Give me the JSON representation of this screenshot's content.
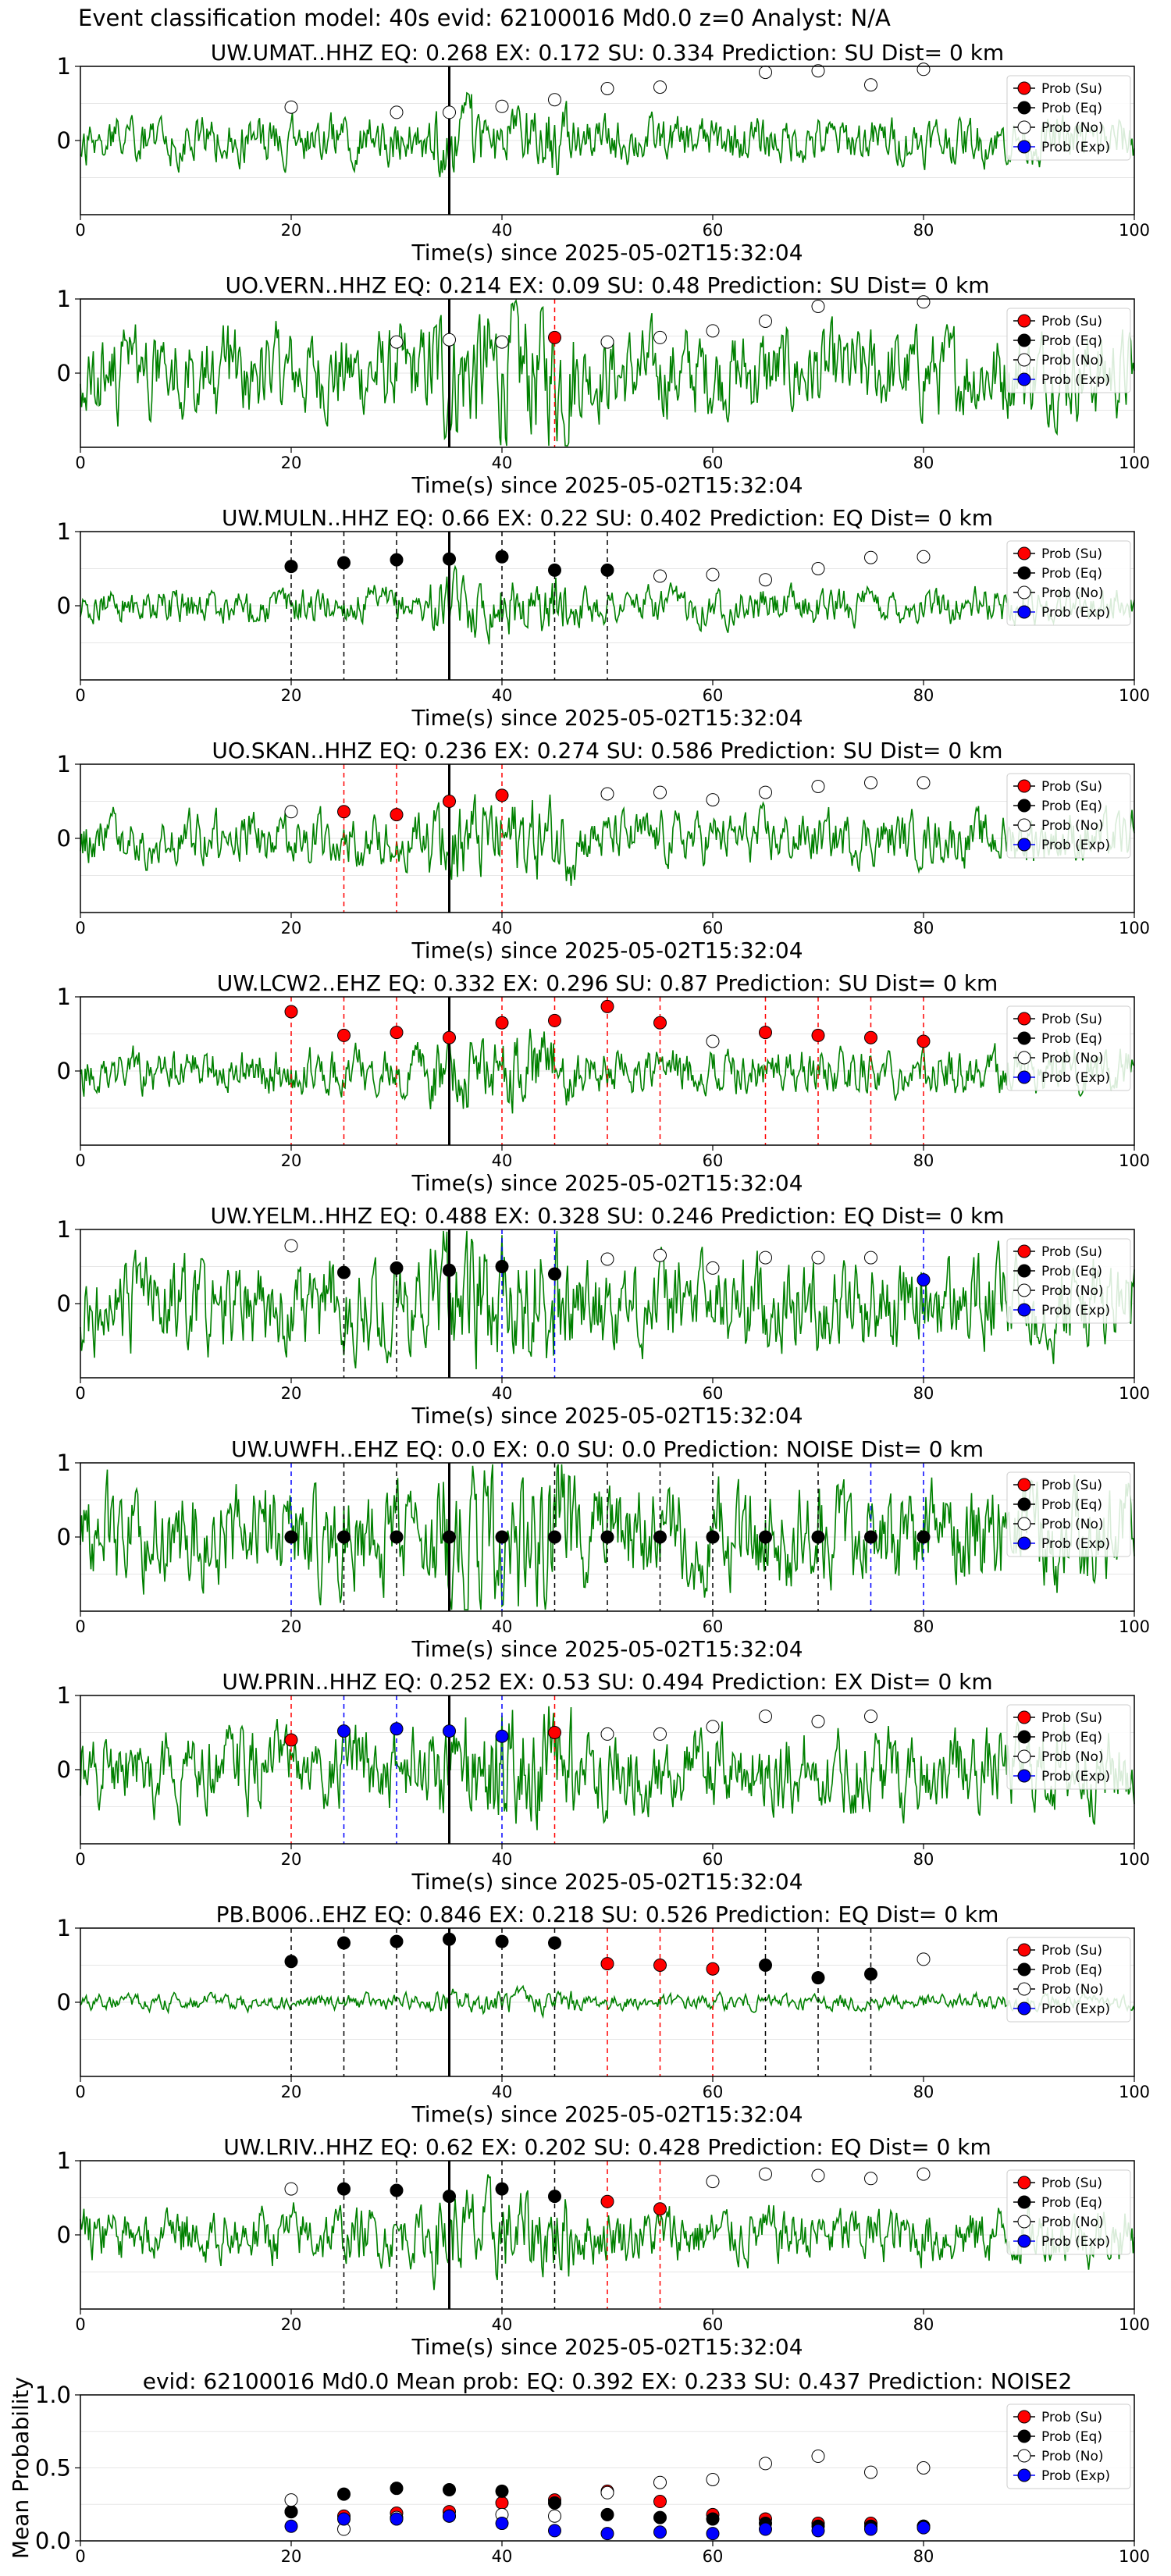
{
  "figure_title": "Event classification model: 40s evid: 62100016 Md0.0 z=0 Analyst: N/A",
  "legend_labels": [
    "Prob (Su)",
    "Prob (Eq)",
    "Prob (No)",
    "Prob (Exp)"
  ],
  "colors": {
    "su": "#ff0000",
    "eq": "#000000",
    "no": "#ffffff",
    "exp": "#0000ff",
    "waveform": "#008000"
  },
  "chart_data": [
    {
      "type": "scatter",
      "title": "UW.UMAT..HHZ   EQ: 0.268  EX: 0.172  SU: 0.334   Prediction: SU    Dist= 0 km",
      "xlabel": "Time(s) since 2025-05-02T15:32:04",
      "xlim": [
        0,
        100
      ],
      "ylim": [
        -1,
        1
      ],
      "xticks": [
        0,
        20,
        40,
        60,
        80,
        100
      ],
      "yticks": [
        0,
        1
      ],
      "onset": 35,
      "waveform_amp": 0.45,
      "waveform_seed": 11,
      "points": [
        [
          20,
          "no",
          0.45
        ],
        [
          30,
          "no",
          0.38
        ],
        [
          35,
          "no",
          0.38
        ],
        [
          40,
          "no",
          0.46
        ],
        [
          45,
          "no",
          0.55
        ],
        [
          50,
          "no",
          0.7
        ],
        [
          55,
          "no",
          0.72
        ],
        [
          65,
          "no",
          0.92
        ],
        [
          70,
          "no",
          0.94
        ],
        [
          75,
          "no",
          0.75
        ],
        [
          80,
          "no",
          0.96
        ]
      ],
      "markers": []
    },
    {
      "type": "scatter",
      "title": "UO.VERN..HHZ   EQ: 0.214  EX: 0.09  SU: 0.48   Prediction: SU    Dist= 0 km",
      "xlabel": "Time(s) since 2025-05-02T15:32:04",
      "xlim": [
        0,
        100
      ],
      "ylim": [
        -1,
        1
      ],
      "xticks": [
        0,
        20,
        40,
        60,
        80,
        100
      ],
      "yticks": [
        0,
        1
      ],
      "onset": 35,
      "waveform_amp": 0.85,
      "waveform_seed": 23,
      "points": [
        [
          30,
          "no",
          0.42
        ],
        [
          35,
          "no",
          0.45
        ],
        [
          40,
          "no",
          0.42
        ],
        [
          45,
          "su",
          0.48
        ],
        [
          50,
          "no",
          0.42
        ],
        [
          55,
          "no",
          0.48
        ],
        [
          60,
          "no",
          0.57
        ],
        [
          65,
          "no",
          0.7
        ],
        [
          70,
          "no",
          0.9
        ],
        [
          80,
          "no",
          0.96
        ]
      ],
      "markers": [
        [
          45,
          "su"
        ]
      ]
    },
    {
      "type": "scatter",
      "title": "UW.MULN..HHZ   EQ: 0.66  EX: 0.22  SU: 0.402   Prediction: EQ    Dist= 0 km",
      "xlabel": "Time(s) since 2025-05-02T15:32:04",
      "xlim": [
        0,
        100
      ],
      "ylim": [
        -1,
        1
      ],
      "xticks": [
        0,
        20,
        40,
        60,
        80,
        100
      ],
      "yticks": [
        0,
        1
      ],
      "onset": 35,
      "waveform_amp": 0.35,
      "waveform_seed": 37,
      "points": [
        [
          20,
          "eq",
          0.53
        ],
        [
          25,
          "eq",
          0.58
        ],
        [
          30,
          "eq",
          0.62
        ],
        [
          35,
          "eq",
          0.63
        ],
        [
          40,
          "eq",
          0.66
        ],
        [
          45,
          "eq",
          0.48
        ],
        [
          50,
          "eq",
          0.48
        ],
        [
          55,
          "no",
          0.4
        ],
        [
          60,
          "no",
          0.42
        ],
        [
          65,
          "no",
          0.35
        ],
        [
          70,
          "no",
          0.5
        ],
        [
          75,
          "no",
          0.65
        ],
        [
          80,
          "no",
          0.66
        ]
      ],
      "markers": [
        [
          20,
          "eq"
        ],
        [
          25,
          "eq"
        ],
        [
          30,
          "eq"
        ],
        [
          35,
          "eq"
        ],
        [
          40,
          "eq"
        ],
        [
          45,
          "eq"
        ],
        [
          50,
          "eq"
        ]
      ]
    },
    {
      "type": "scatter",
      "title": "UO.SKAN..HHZ   EQ: 0.236  EX: 0.274  SU: 0.586   Prediction: SU    Dist= 0 km",
      "xlabel": "Time(s) since 2025-05-02T15:32:04",
      "xlim": [
        0,
        100
      ],
      "ylim": [
        -1,
        1
      ],
      "xticks": [
        0,
        20,
        40,
        60,
        80,
        100
      ],
      "yticks": [
        0,
        1
      ],
      "onset": 35,
      "waveform_amp": 0.5,
      "waveform_seed": 41,
      "points": [
        [
          20,
          "no",
          0.36
        ],
        [
          25,
          "su",
          0.36
        ],
        [
          30,
          "su",
          0.32
        ],
        [
          35,
          "su",
          0.5
        ],
        [
          40,
          "su",
          0.58
        ],
        [
          50,
          "no",
          0.6
        ],
        [
          55,
          "no",
          0.62
        ],
        [
          60,
          "no",
          0.52
        ],
        [
          65,
          "no",
          0.62
        ],
        [
          70,
          "no",
          0.7
        ],
        [
          75,
          "no",
          0.75
        ],
        [
          80,
          "no",
          0.75
        ]
      ],
      "markers": [
        [
          25,
          "su"
        ],
        [
          30,
          "su"
        ],
        [
          40,
          "su"
        ]
      ]
    },
    {
      "type": "scatter",
      "title": "UW.LCW2..EHZ   EQ: 0.332  EX: 0.296  SU: 0.87   Prediction: SU    Dist= 0 km",
      "xlabel": "Time(s) since 2025-05-02T15:32:04",
      "xlim": [
        0,
        100
      ],
      "ylim": [
        -1,
        1
      ],
      "xticks": [
        0,
        20,
        40,
        60,
        80,
        100
      ],
      "yticks": [
        0,
        1
      ],
      "onset": 35,
      "waveform_amp": 0.45,
      "waveform_seed": 53,
      "points": [
        [
          20,
          "su",
          0.8
        ],
        [
          25,
          "su",
          0.48
        ],
        [
          30,
          "su",
          0.52
        ],
        [
          35,
          "su",
          0.45
        ],
        [
          40,
          "su",
          0.65
        ],
        [
          45,
          "su",
          0.68
        ],
        [
          50,
          "su",
          0.87
        ],
        [
          55,
          "su",
          0.65
        ],
        [
          60,
          "no",
          0.4
        ],
        [
          65,
          "su",
          0.52
        ],
        [
          70,
          "su",
          0.48
        ],
        [
          75,
          "su",
          0.45
        ],
        [
          80,
          "su",
          0.4
        ]
      ],
      "markers": [
        [
          20,
          "su"
        ],
        [
          25,
          "su"
        ],
        [
          30,
          "su"
        ],
        [
          40,
          "su"
        ],
        [
          45,
          "su"
        ],
        [
          50,
          "su"
        ],
        [
          55,
          "su"
        ],
        [
          65,
          "su"
        ],
        [
          70,
          "su"
        ],
        [
          75,
          "su"
        ],
        [
          80,
          "su"
        ]
      ]
    },
    {
      "type": "scatter",
      "title": "UW.YELM..HHZ   EQ: 0.488  EX: 0.328  SU: 0.246   Prediction: EQ    Dist= 0 km",
      "xlabel": "Time(s) since 2025-05-02T15:32:04",
      "xlim": [
        0,
        100
      ],
      "ylim": [
        -1,
        1
      ],
      "xticks": [
        0,
        20,
        40,
        60,
        80,
        100
      ],
      "yticks": [
        0,
        1
      ],
      "onset": 35,
      "waveform_amp": 0.9,
      "waveform_seed": 67,
      "points": [
        [
          20,
          "no",
          0.78
        ],
        [
          25,
          "eq",
          0.42
        ],
        [
          30,
          "eq",
          0.48
        ],
        [
          35,
          "eq",
          0.45
        ],
        [
          40,
          "eq",
          0.5
        ],
        [
          45,
          "eq",
          0.4
        ],
        [
          50,
          "no",
          0.6
        ],
        [
          55,
          "no",
          0.65
        ],
        [
          60,
          "no",
          0.48
        ],
        [
          65,
          "no",
          0.62
        ],
        [
          70,
          "no",
          0.62
        ],
        [
          75,
          "no",
          0.62
        ],
        [
          80,
          "exp",
          0.32
        ]
      ],
      "markers": [
        [
          25,
          "eq"
        ],
        [
          30,
          "eq"
        ],
        [
          40,
          "exp"
        ],
        [
          45,
          "exp"
        ],
        [
          80,
          "exp"
        ]
      ]
    },
    {
      "type": "scatter",
      "title": "UW.UWFH..EHZ   EQ: 0.0  EX: 0.0  SU: 0.0   Prediction: NOISE    Dist= 0 km",
      "xlabel": "Time(s) since 2025-05-02T15:32:04",
      "xlim": [
        0,
        100
      ],
      "ylim": [
        -1,
        1
      ],
      "xticks": [
        0,
        20,
        40,
        60,
        80,
        100
      ],
      "yticks": [
        0,
        1
      ],
      "onset": 35,
      "waveform_amp": 1.0,
      "waveform_seed": 79,
      "points": [
        [
          20,
          "eq",
          0.0
        ],
        [
          25,
          "eq",
          0.0
        ],
        [
          30,
          "eq",
          0.0
        ],
        [
          35,
          "eq",
          0.0
        ],
        [
          40,
          "eq",
          0.0
        ],
        [
          45,
          "eq",
          0.0
        ],
        [
          50,
          "eq",
          0.0
        ],
        [
          55,
          "eq",
          0.0
        ],
        [
          60,
          "eq",
          0.0
        ],
        [
          65,
          "eq",
          0.0
        ],
        [
          70,
          "eq",
          0.0
        ],
        [
          75,
          "eq",
          0.0
        ],
        [
          80,
          "eq",
          0.0
        ]
      ],
      "markers": [
        [
          20,
          "exp"
        ],
        [
          25,
          "eq"
        ],
        [
          30,
          "eq"
        ],
        [
          40,
          "exp"
        ],
        [
          45,
          "eq"
        ],
        [
          50,
          "eq"
        ],
        [
          55,
          "eq"
        ],
        [
          60,
          "eq"
        ],
        [
          65,
          "eq"
        ],
        [
          70,
          "eq"
        ],
        [
          75,
          "exp"
        ],
        [
          80,
          "exp"
        ]
      ]
    },
    {
      "type": "scatter",
      "title": "UW.PRIN..HHZ   EQ: 0.252  EX: 0.53  SU: 0.494   Prediction: EX    Dist= 0 km",
      "xlabel": "Time(s) since 2025-05-02T15:32:04",
      "xlim": [
        0,
        100
      ],
      "ylim": [
        -1,
        1
      ],
      "xticks": [
        0,
        20,
        40,
        60,
        80,
        100
      ],
      "yticks": [
        0,
        1
      ],
      "onset": 35,
      "waveform_amp": 0.8,
      "waveform_seed": 89,
      "points": [
        [
          20,
          "su",
          0.4
        ],
        [
          25,
          "exp",
          0.52
        ],
        [
          30,
          "exp",
          0.55
        ],
        [
          35,
          "exp",
          0.52
        ],
        [
          40,
          "exp",
          0.45
        ],
        [
          45,
          "su",
          0.5
        ],
        [
          50,
          "no",
          0.48
        ],
        [
          55,
          "no",
          0.48
        ],
        [
          60,
          "no",
          0.58
        ],
        [
          65,
          "no",
          0.72
        ],
        [
          70,
          "no",
          0.65
        ],
        [
          75,
          "no",
          0.72
        ]
      ],
      "markers": [
        [
          20,
          "su"
        ],
        [
          25,
          "exp"
        ],
        [
          30,
          "exp"
        ],
        [
          40,
          "exp"
        ],
        [
          45,
          "su"
        ]
      ]
    },
    {
      "type": "scatter",
      "title": "PB.B006..EHZ   EQ: 0.846  EX: 0.218  SU: 0.526   Prediction: EQ    Dist= 0 km",
      "xlabel": "Time(s) since 2025-05-02T15:32:04",
      "xlim": [
        0,
        100
      ],
      "ylim": [
        -1,
        1
      ],
      "xticks": [
        0,
        20,
        40,
        60,
        80,
        100
      ],
      "yticks": [
        0,
        1
      ],
      "onset": 35,
      "waveform_amp": 0.15,
      "waveform_seed": 97,
      "points": [
        [
          20,
          "eq",
          0.55
        ],
        [
          25,
          "eq",
          0.8
        ],
        [
          30,
          "eq",
          0.82
        ],
        [
          35,
          "eq",
          0.85
        ],
        [
          40,
          "eq",
          0.82
        ],
        [
          45,
          "eq",
          0.8
        ],
        [
          50,
          "su",
          0.52
        ],
        [
          55,
          "su",
          0.5
        ],
        [
          60,
          "su",
          0.45
        ],
        [
          65,
          "eq",
          0.5
        ],
        [
          70,
          "eq",
          0.33
        ],
        [
          75,
          "eq",
          0.38
        ],
        [
          80,
          "no",
          0.58
        ]
      ],
      "markers": [
        [
          20,
          "eq"
        ],
        [
          25,
          "eq"
        ],
        [
          30,
          "eq"
        ],
        [
          40,
          "eq"
        ],
        [
          45,
          "eq"
        ],
        [
          50,
          "su"
        ],
        [
          55,
          "su"
        ],
        [
          60,
          "su"
        ],
        [
          65,
          "eq"
        ],
        [
          70,
          "eq"
        ],
        [
          75,
          "eq"
        ]
      ]
    },
    {
      "type": "scatter",
      "title": "UW.LRIV..HHZ   EQ: 0.62  EX: 0.202  SU: 0.428   Prediction: EQ    Dist= 0 km",
      "xlabel": "Time(s) since 2025-05-02T15:32:04",
      "xlim": [
        0,
        100
      ],
      "ylim": [
        -1,
        1
      ],
      "xticks": [
        0,
        20,
        40,
        60,
        80,
        100
      ],
      "yticks": [
        0,
        1
      ],
      "onset": 35,
      "waveform_amp": 0.55,
      "waveform_seed": 103,
      "points": [
        [
          20,
          "no",
          0.62
        ],
        [
          25,
          "eq",
          0.62
        ],
        [
          30,
          "eq",
          0.6
        ],
        [
          35,
          "eq",
          0.52
        ],
        [
          40,
          "eq",
          0.62
        ],
        [
          45,
          "eq",
          0.52
        ],
        [
          50,
          "su",
          0.45
        ],
        [
          55,
          "su",
          0.35
        ],
        [
          60,
          "no",
          0.72
        ],
        [
          65,
          "no",
          0.82
        ],
        [
          70,
          "no",
          0.8
        ],
        [
          75,
          "no",
          0.76
        ],
        [
          80,
          "no",
          0.82
        ]
      ],
      "markers": [
        [
          25,
          "eq"
        ],
        [
          30,
          "eq"
        ],
        [
          40,
          "eq"
        ],
        [
          45,
          "eq"
        ],
        [
          50,
          "su"
        ],
        [
          55,
          "su"
        ]
      ]
    },
    {
      "type": "scatter",
      "title": "evid: 62100016  Md0.0   Mean prob:   EQ: 0.392  EX: 0.233  SU: 0.437   Prediction: NOISE2",
      "xlabel": "",
      "ylabel": "Mean Probability",
      "xlim": [
        0,
        100
      ],
      "ylim": [
        0,
        1
      ],
      "xticks": [
        0,
        20,
        40,
        60,
        80,
        100
      ],
      "yticks": [
        0.0,
        0.5,
        1.0
      ],
      "series": [
        {
          "name": "Prob (Su)",
          "x": [
            20,
            25,
            30,
            35,
            40,
            45,
            50,
            55,
            60,
            65,
            70,
            75,
            80
          ],
          "y": [
            0.2,
            0.17,
            0.19,
            0.2,
            0.26,
            0.28,
            0.34,
            0.27,
            0.18,
            0.15,
            0.12,
            0.12,
            0.1
          ]
        },
        {
          "name": "Prob (Eq)",
          "x": [
            20,
            25,
            30,
            35,
            40,
            45,
            50,
            55,
            60,
            65,
            70,
            75,
            80
          ],
          "y": [
            0.2,
            0.32,
            0.36,
            0.35,
            0.34,
            0.26,
            0.18,
            0.16,
            0.15,
            0.12,
            0.1,
            0.1,
            0.1
          ]
        },
        {
          "name": "Prob (No)",
          "x": [
            20,
            25,
            30,
            35,
            40,
            45,
            50,
            55,
            60,
            65,
            70,
            75,
            80
          ],
          "y": [
            0.28,
            0.08,
            0.16,
            0.17,
            0.18,
            0.17,
            0.33,
            0.4,
            0.42,
            0.53,
            0.58,
            0.47,
            0.5
          ]
        },
        {
          "name": "Prob (Exp)",
          "x": [
            20,
            25,
            30,
            35,
            40,
            45,
            50,
            55,
            60,
            65,
            70,
            75,
            80
          ],
          "y": [
            0.1,
            0.15,
            0.15,
            0.17,
            0.12,
            0.07,
            0.05,
            0.06,
            0.05,
            0.08,
            0.07,
            0.08,
            0.09
          ]
        }
      ]
    }
  ]
}
